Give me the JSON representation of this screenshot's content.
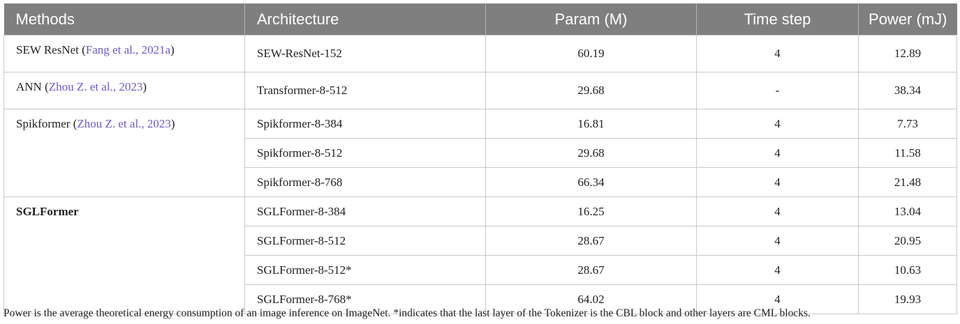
{
  "headers": [
    "Methods",
    "Architecture",
    "Param (M)",
    "Time step",
    "Power (mJ)"
  ],
  "groups": [
    {
      "method": "SEW ResNet",
      "cite": "Fang et al., 2021a",
      "bold": false,
      "rows": [
        {
          "arch": "SEW-ResNet-152",
          "param": "60.19",
          "step": "4",
          "power": "12.89"
        }
      ]
    },
    {
      "method": "ANN",
      "cite": "Zhou Z. et al., 2023",
      "bold": false,
      "rows": [
        {
          "arch": "Transformer-8-512",
          "param": "29.68",
          "step": "-",
          "power": "38.34"
        }
      ]
    },
    {
      "method": "Spikformer",
      "cite": "Zhou Z. et al., 2023",
      "bold": false,
      "rows": [
        {
          "arch": "Spikformer-8-384",
          "param": "16.81",
          "step": "4",
          "power": "7.73"
        },
        {
          "arch": "Spikformer-8-512",
          "param": "29.68",
          "step": "4",
          "power": "11.58"
        },
        {
          "arch": "Spikformer-8-768",
          "param": "66.34",
          "step": "4",
          "power": "21.48"
        }
      ]
    },
    {
      "method": "SGLFormer",
      "cite": "",
      "bold": true,
      "rows": [
        {
          "arch": "SGLFormer-8-384",
          "param": "16.25",
          "step": "4",
          "power": "13.04"
        },
        {
          "arch": "SGLFormer-8-512",
          "param": "28.67",
          "step": "4",
          "power": "20.95"
        },
        {
          "arch": "SGLFormer-8-512*",
          "param": "28.67",
          "step": "4",
          "power": "10.63"
        },
        {
          "arch": "SGLFormer-8-768*",
          "param": "64.02",
          "step": "4",
          "power": "19.93"
        }
      ]
    }
  ],
  "footnote": "Power is the average theoretical energy consumption of an image inference on ImageNet. *indicates that the last layer of the Tokenizer is the CBL block and other layers are CML blocks."
}
